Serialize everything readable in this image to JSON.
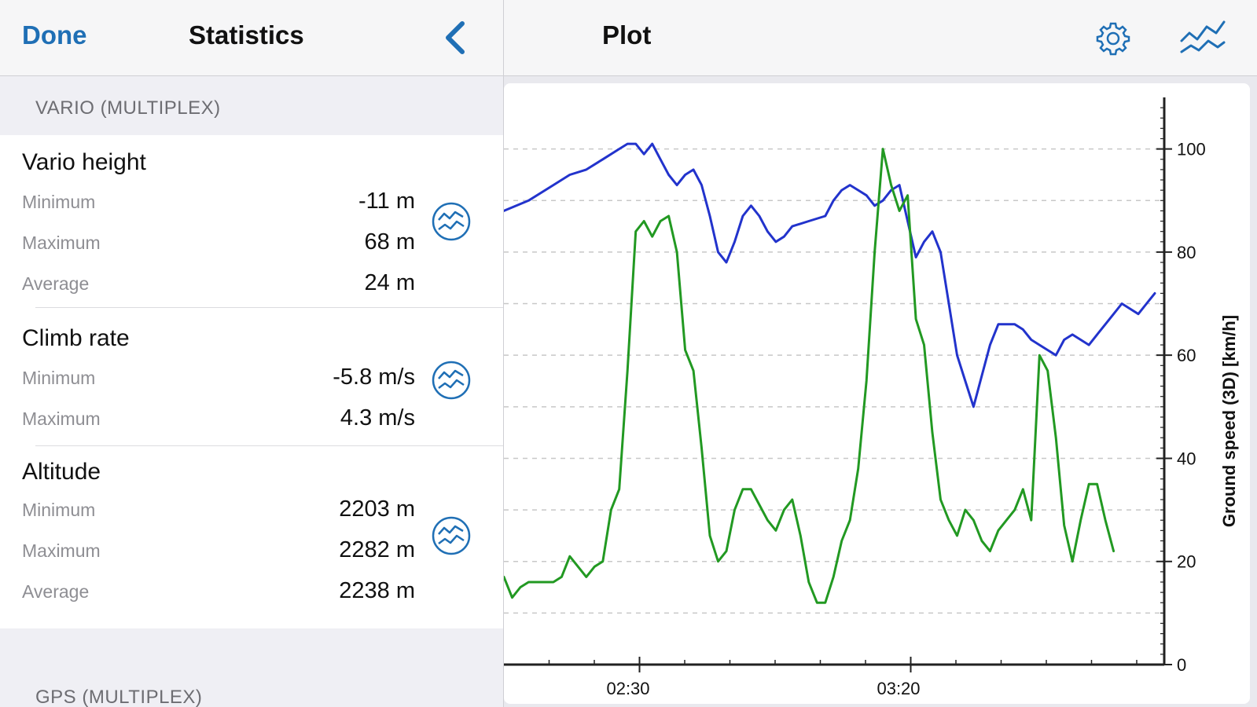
{
  "left_header": {
    "done_label": "Done",
    "title": "Statistics"
  },
  "sections": [
    {
      "label": "VARIO (MULTIPLEX)",
      "groups": [
        {
          "title": "Vario height",
          "rows": [
            {
              "label": "Minimum",
              "value": "-11 m"
            },
            {
              "label": "Maximum",
              "value": "68 m"
            },
            {
              "label": "Average",
              "value": "24 m"
            }
          ]
        },
        {
          "title": "Climb rate",
          "rows": [
            {
              "label": "Minimum",
              "value": "-5.8 m/s"
            },
            {
              "label": "Maximum",
              "value": "4.3 m/s"
            }
          ]
        },
        {
          "title": "Altitude",
          "rows": [
            {
              "label": "Minimum",
              "value": "2203 m"
            },
            {
              "label": "Maximum",
              "value": "2282 m"
            },
            {
              "label": "Average",
              "value": "2238 m"
            }
          ]
        }
      ]
    },
    {
      "label": "GPS (MULTIPLEX)",
      "groups": []
    }
  ],
  "right_header": {
    "title": "Plot"
  },
  "icons": {
    "back": "chevron-left-icon",
    "plot_row": "plot-graph-icon",
    "settings": "gear-icon",
    "graph": "line-graph-icon"
  },
  "colors": {
    "accent": "#1f6fb5",
    "series_blue": "#2233cc",
    "series_green": "#229922"
  },
  "chart_data": {
    "type": "line",
    "ylabel": "Ground speed (3D) [km/h]",
    "y_ticks": [
      0,
      20,
      40,
      60,
      80,
      100
    ],
    "ylim": [
      0,
      110
    ],
    "x_tick_labels": [
      "02:30",
      "03:20"
    ],
    "grid": true,
    "series": [
      {
        "color": "#2233cc",
        "points": [
          [
            0,
            88
          ],
          [
            3,
            90
          ],
          [
            6,
            93
          ],
          [
            8,
            95
          ],
          [
            10,
            96
          ],
          [
            12,
            98
          ],
          [
            14,
            100
          ],
          [
            15,
            101
          ],
          [
            16,
            101
          ],
          [
            17,
            99
          ],
          [
            18,
            101
          ],
          [
            19,
            98
          ],
          [
            20,
            95
          ],
          [
            21,
            93
          ],
          [
            22,
            95
          ],
          [
            23,
            96
          ],
          [
            24,
            93
          ],
          [
            25,
            87
          ],
          [
            26,
            80
          ],
          [
            27,
            78
          ],
          [
            28,
            82
          ],
          [
            29,
            87
          ],
          [
            30,
            89
          ],
          [
            31,
            87
          ],
          [
            32,
            84
          ],
          [
            33,
            82
          ],
          [
            34,
            83
          ],
          [
            35,
            85
          ],
          [
            37,
            86
          ],
          [
            39,
            87
          ],
          [
            40,
            90
          ],
          [
            41,
            92
          ],
          [
            42,
            93
          ],
          [
            43,
            92
          ],
          [
            44,
            91
          ],
          [
            45,
            89
          ],
          [
            46,
            90
          ],
          [
            47,
            92
          ],
          [
            48,
            93
          ],
          [
            49,
            86
          ],
          [
            50,
            79
          ],
          [
            51,
            82
          ],
          [
            52,
            84
          ],
          [
            53,
            80
          ],
          [
            54,
            70
          ],
          [
            55,
            60
          ],
          [
            56,
            55
          ],
          [
            57,
            50
          ],
          [
            58,
            56
          ],
          [
            59,
            62
          ],
          [
            60,
            66
          ],
          [
            62,
            66
          ],
          [
            63,
            65
          ],
          [
            64,
            63
          ],
          [
            65,
            62
          ],
          [
            66,
            61
          ],
          [
            67,
            60
          ],
          [
            68,
            63
          ],
          [
            69,
            64
          ],
          [
            70,
            63
          ],
          [
            71,
            62
          ],
          [
            72,
            64
          ],
          [
            73,
            66
          ],
          [
            74,
            68
          ],
          [
            75,
            70
          ],
          [
            76,
            69
          ],
          [
            77,
            68
          ],
          [
            78,
            70
          ],
          [
            79,
            72
          ]
        ]
      },
      {
        "color": "#229922",
        "points": [
          [
            0,
            17
          ],
          [
            1,
            13
          ],
          [
            2,
            15
          ],
          [
            3,
            16
          ],
          [
            4,
            16
          ],
          [
            5,
            16
          ],
          [
            6,
            16
          ],
          [
            7,
            17
          ],
          [
            8,
            21
          ],
          [
            9,
            19
          ],
          [
            10,
            17
          ],
          [
            11,
            19
          ],
          [
            12,
            20
          ],
          [
            13,
            30
          ],
          [
            14,
            34
          ],
          [
            15,
            57
          ],
          [
            16,
            84
          ],
          [
            17,
            86
          ],
          [
            18,
            83
          ],
          [
            19,
            86
          ],
          [
            20,
            87
          ],
          [
            21,
            80
          ],
          [
            22,
            61
          ],
          [
            23,
            57
          ],
          [
            24,
            42
          ],
          [
            25,
            25
          ],
          [
            26,
            20
          ],
          [
            27,
            22
          ],
          [
            28,
            30
          ],
          [
            29,
            34
          ],
          [
            30,
            34
          ],
          [
            31,
            31
          ],
          [
            32,
            28
          ],
          [
            33,
            26
          ],
          [
            34,
            30
          ],
          [
            35,
            32
          ],
          [
            36,
            25
          ],
          [
            37,
            16
          ],
          [
            38,
            12
          ],
          [
            39,
            12
          ],
          [
            40,
            17
          ],
          [
            41,
            24
          ],
          [
            42,
            28
          ],
          [
            43,
            38
          ],
          [
            44,
            55
          ],
          [
            45,
            80
          ],
          [
            46,
            100
          ],
          [
            47,
            93
          ],
          [
            48,
            88
          ],
          [
            49,
            91
          ],
          [
            50,
            67
          ],
          [
            51,
            62
          ],
          [
            52,
            45
          ],
          [
            53,
            32
          ],
          [
            54,
            28
          ],
          [
            55,
            25
          ],
          [
            56,
            30
          ],
          [
            57,
            28
          ],
          [
            58,
            24
          ],
          [
            59,
            22
          ],
          [
            60,
            26
          ],
          [
            61,
            28
          ],
          [
            62,
            30
          ],
          [
            63,
            34
          ],
          [
            64,
            28
          ],
          [
            65,
            60
          ],
          [
            66,
            57
          ],
          [
            67,
            44
          ],
          [
            68,
            27
          ],
          [
            69,
            20
          ],
          [
            70,
            28
          ],
          [
            71,
            35
          ],
          [
            72,
            35
          ],
          [
            73,
            28
          ],
          [
            74,
            22
          ]
        ]
      }
    ]
  }
}
